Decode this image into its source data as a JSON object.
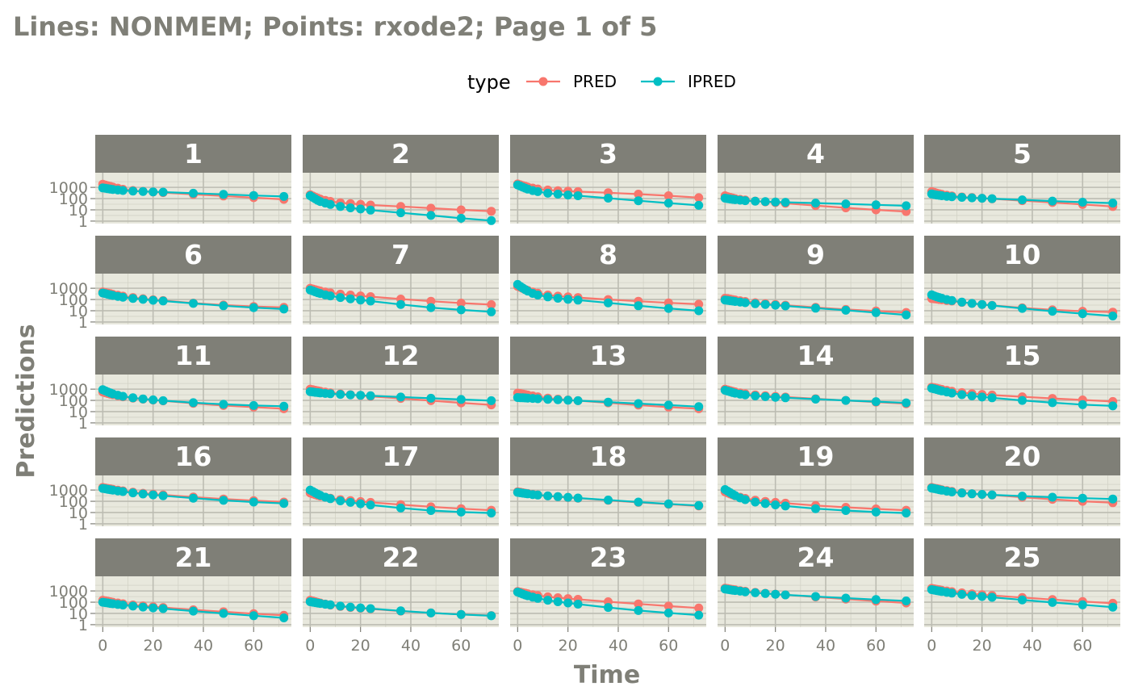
{
  "chart_data": {
    "type": "line",
    "title": "Lines: NONMEM; Points: rxode2; Page 1 of 5",
    "xlabel": "Time",
    "ylabel": "Predictions",
    "y_scale": "log10",
    "xlim": [
      -3,
      75
    ],
    "ylim": [
      0.6,
      20000
    ],
    "x_ticks": [
      0,
      20,
      40,
      60
    ],
    "y_ticks": [
      1,
      10,
      100,
      1000
    ],
    "legend": {
      "title": "type",
      "position": "top",
      "entries": [
        "PRED",
        "IPRED"
      ]
    },
    "colors": {
      "PRED": "#f8766d",
      "IPRED": "#00bfc4",
      "strip": "#7f7f77",
      "panel": "#e8e8dd",
      "grid": "#bcbcb2"
    },
    "times": [
      0,
      1,
      2,
      3,
      4,
      6,
      8,
      12,
      16,
      20,
      24,
      36,
      48,
      60,
      72
    ],
    "panels": [
      {
        "id": "1",
        "PRED": [
          1900,
          1600,
          1400,
          1220,
          1080,
          850,
          680,
          530,
          450,
          390,
          340,
          240,
          170,
          120,
          85
        ],
        "IPRED": [
          900,
          820,
          760,
          700,
          650,
          580,
          530,
          470,
          430,
          400,
          380,
          300,
          240,
          190,
          155
        ]
      },
      {
        "id": "2",
        "PRED": [
          220,
          170,
          135,
          110,
          92,
          70,
          57,
          43,
          36,
          31,
          27,
          20,
          14,
          10,
          7.5
        ],
        "IPRED": [
          180,
          130,
          95,
          70,
          55,
          40,
          30,
          20,
          15,
          12,
          9.5,
          5.5,
          3.2,
          1.8,
          1.1
        ]
      },
      {
        "id": "3",
        "PRED": [
          2000,
          1700,
          1450,
          1250,
          1080,
          870,
          720,
          580,
          510,
          460,
          420,
          330,
          250,
          180,
          120
        ],
        "IPRED": [
          1650,
          1300,
          1040,
          850,
          700,
          520,
          420,
          300,
          250,
          210,
          180,
          110,
          65,
          40,
          25
        ]
      },
      {
        "id": "4",
        "PRED": [
          180,
          150,
          130,
          115,
          100,
          85,
          75,
          60,
          51,
          44,
          38,
          24,
          15,
          10,
          7
        ],
        "IPRED": [
          110,
          100,
          92,
          86,
          80,
          72,
          66,
          59,
          54,
          50,
          47,
          40,
          34,
          28,
          23
        ]
      },
      {
        "id": "5",
        "PRED": [
          420,
          360,
          310,
          270,
          240,
          200,
          170,
          140,
          123,
          108,
          96,
          66,
          45,
          30,
          20
        ],
        "IPRED": [
          260,
          230,
          210,
          195,
          180,
          160,
          148,
          130,
          118,
          108,
          100,
          78,
          60,
          48,
          40
        ]
      },
      {
        "id": "6",
        "PRED": [
          480,
          420,
          370,
          330,
          290,
          240,
          200,
          150,
          118,
          95,
          80,
          48,
          32,
          24,
          20
        ],
        "IPRED": [
          380,
          330,
          290,
          260,
          230,
          190,
          160,
          125,
          102,
          86,
          74,
          45,
          28,
          19,
          14
        ]
      },
      {
        "id": "7",
        "PRED": [
          1000,
          860,
          740,
          650,
          570,
          460,
          390,
          300,
          250,
          210,
          180,
          110,
          70,
          48,
          35
        ],
        "IPRED": [
          700,
          580,
          480,
          400,
          340,
          260,
          210,
          150,
          115,
          90,
          72,
          36,
          19,
          12,
          8
        ]
      },
      {
        "id": "8",
        "PRED": [
          1500,
          1200,
          960,
          780,
          650,
          470,
          360,
          250,
          200,
          170,
          150,
          100,
          70,
          50,
          38
        ],
        "IPRED": [
          2200,
          1500,
          1050,
          760,
          560,
          350,
          250,
          170,
          130,
          105,
          88,
          50,
          28,
          16,
          10
        ]
      },
      {
        "id": "9",
        "PRED": [
          130,
          120,
          110,
          100,
          92,
          78,
          67,
          52,
          43,
          36,
          31,
          20,
          13,
          9.5,
          7
        ],
        "IPRED": [
          90,
          84,
          78,
          72,
          67,
          59,
          52,
          42,
          36,
          31,
          27,
          17,
          11,
          6.8,
          4.3
        ]
      },
      {
        "id": "10",
        "PRED": [
          120,
          115,
          108,
          100,
          94,
          82,
          72,
          56,
          45,
          36,
          30,
          18,
          12,
          9,
          7.5
        ],
        "IPRED": [
          260,
          210,
          175,
          150,
          130,
          100,
          82,
          58,
          45,
          36,
          29,
          16,
          9,
          5.5,
          3.4
        ]
      },
      {
        "id": "11",
        "PRED": [
          560,
          480,
          410,
          360,
          320,
          260,
          210,
          160,
          130,
          108,
          92,
          55,
          35,
          25,
          18
        ],
        "IPRED": [
          900,
          700,
          560,
          460,
          380,
          290,
          230,
          170,
          135,
          112,
          95,
          62,
          45,
          35,
          30
        ]
      },
      {
        "id": "12",
        "PRED": [
          1000,
          900,
          800,
          720,
          650,
          550,
          480,
          380,
          320,
          270,
          230,
          150,
          95,
          60,
          40
        ],
        "IPRED": [
          600,
          560,
          520,
          490,
          460,
          420,
          390,
          340,
          310,
          285,
          260,
          200,
          155,
          120,
          95
        ]
      },
      {
        "id": "13",
        "PRED": [
          450,
          410,
          370,
          330,
          300,
          250,
          210,
          160,
          130,
          110,
          95,
          60,
          38,
          25,
          18
        ],
        "IPRED": [
          180,
          175,
          170,
          165,
          160,
          150,
          140,
          125,
          115,
          105,
          95,
          70,
          52,
          38,
          28
        ]
      },
      {
        "id": "14",
        "PRED": [
          1000,
          860,
          740,
          650,
          570,
          460,
          390,
          310,
          260,
          225,
          200,
          140,
          100,
          70,
          50
        ],
        "IPRED": [
          800,
          680,
          580,
          500,
          440,
          360,
          310,
          250,
          215,
          190,
          170,
          130,
          100,
          78,
          60
        ]
      },
      {
        "id": "15",
        "PRED": [
          1500,
          1350,
          1200,
          1080,
          960,
          780,
          650,
          490,
          400,
          340,
          300,
          210,
          150,
          110,
          80
        ],
        "IPRED": [
          1200,
          1050,
          920,
          800,
          700,
          560,
          450,
          320,
          250,
          200,
          170,
          100,
          62,
          42,
          32
        ]
      },
      {
        "id": "16",
        "PRED": [
          1700,
          1550,
          1400,
          1280,
          1170,
          990,
          850,
          640,
          520,
          430,
          370,
          240,
          160,
          115,
          85
        ],
        "IPRED": [
          1400,
          1280,
          1170,
          1070,
          980,
          840,
          730,
          560,
          450,
          370,
          310,
          190,
          120,
          85,
          65
        ]
      },
      {
        "id": "17",
        "PRED": [
          550,
          460,
          390,
          330,
          290,
          230,
          190,
          140,
          115,
          95,
          80,
          50,
          32,
          22,
          16
        ],
        "IPRED": [
          1000,
          750,
          560,
          430,
          340,
          230,
          170,
          110,
          80,
          60,
          47,
          25,
          15,
          11,
          9
        ]
      },
      {
        "id": "18",
        "PRED": [
          700,
          640,
          580,
          530,
          490,
          420,
          370,
          300,
          255,
          220,
          190,
          120,
          80,
          55,
          38
        ],
        "IPRED": [
          620,
          570,
          530,
          490,
          460,
          400,
          360,
          300,
          260,
          225,
          195,
          130,
          85,
          58,
          42
        ]
      },
      {
        "id": "19",
        "PRED": [
          700,
          560,
          450,
          370,
          310,
          230,
          180,
          125,
          98,
          80,
          68,
          42,
          29,
          21,
          16
        ],
        "IPRED": [
          1100,
          800,
          580,
          430,
          320,
          200,
          140,
          85,
          62,
          48,
          38,
          22,
          15,
          11,
          9
        ]
      },
      {
        "id": "20",
        "PRED": [
          1700,
          1500,
          1350,
          1200,
          1080,
          900,
          760,
          580,
          480,
          410,
          360,
          230,
          150,
          100,
          75
        ],
        "IPRED": [
          1500,
          1350,
          1200,
          1080,
          970,
          800,
          680,
          540,
          460,
          410,
          370,
          290,
          230,
          190,
          160
        ]
      },
      {
        "id": "21",
        "PRED": [
          150,
          135,
          120,
          110,
          100,
          85,
          73,
          57,
          47,
          40,
          34,
          21,
          14,
          9.5,
          6.8
        ],
        "IPRED": [
          100,
          92,
          85,
          78,
          72,
          63,
          56,
          45,
          37,
          31,
          27,
          16,
          10,
          6.3,
          4
        ]
      },
      {
        "id": "22",
        "PRED": [
          150,
          130,
          112,
          98,
          86,
          68,
          56,
          42,
          34,
          29,
          25,
          16,
          11,
          8.2,
          6.5
        ],
        "IPRED": [
          110,
          100,
          92,
          84,
          77,
          66,
          58,
          45,
          37,
          31,
          27,
          17,
          11,
          8,
          6.2
        ]
      },
      {
        "id": "23",
        "PRED": [
          900,
          800,
          700,
          630,
          560,
          460,
          390,
          300,
          250,
          210,
          180,
          110,
          70,
          45,
          30
        ],
        "IPRED": [
          800,
          650,
          530,
          440,
          370,
          280,
          220,
          150,
          110,
          85,
          67,
          34,
          18,
          11,
          7
        ]
      },
      {
        "id": "24",
        "PRED": [
          1800,
          1650,
          1500,
          1370,
          1260,
          1080,
          940,
          750,
          620,
          520,
          450,
          290,
          190,
          125,
          85
        ],
        "IPRED": [
          1500,
          1380,
          1270,
          1170,
          1090,
          950,
          840,
          690,
          590,
          510,
          450,
          320,
          230,
          170,
          130
        ]
      },
      {
        "id": "25",
        "PRED": [
          1700,
          1550,
          1400,
          1280,
          1170,
          1000,
          860,
          670,
          550,
          460,
          400,
          260,
          170,
          115,
          80
        ],
        "IPRED": [
          1300,
          1180,
          1070,
          980,
          890,
          750,
          640,
          490,
          390,
          320,
          270,
          160,
          95,
          58,
          36
        ]
      }
    ]
  }
}
